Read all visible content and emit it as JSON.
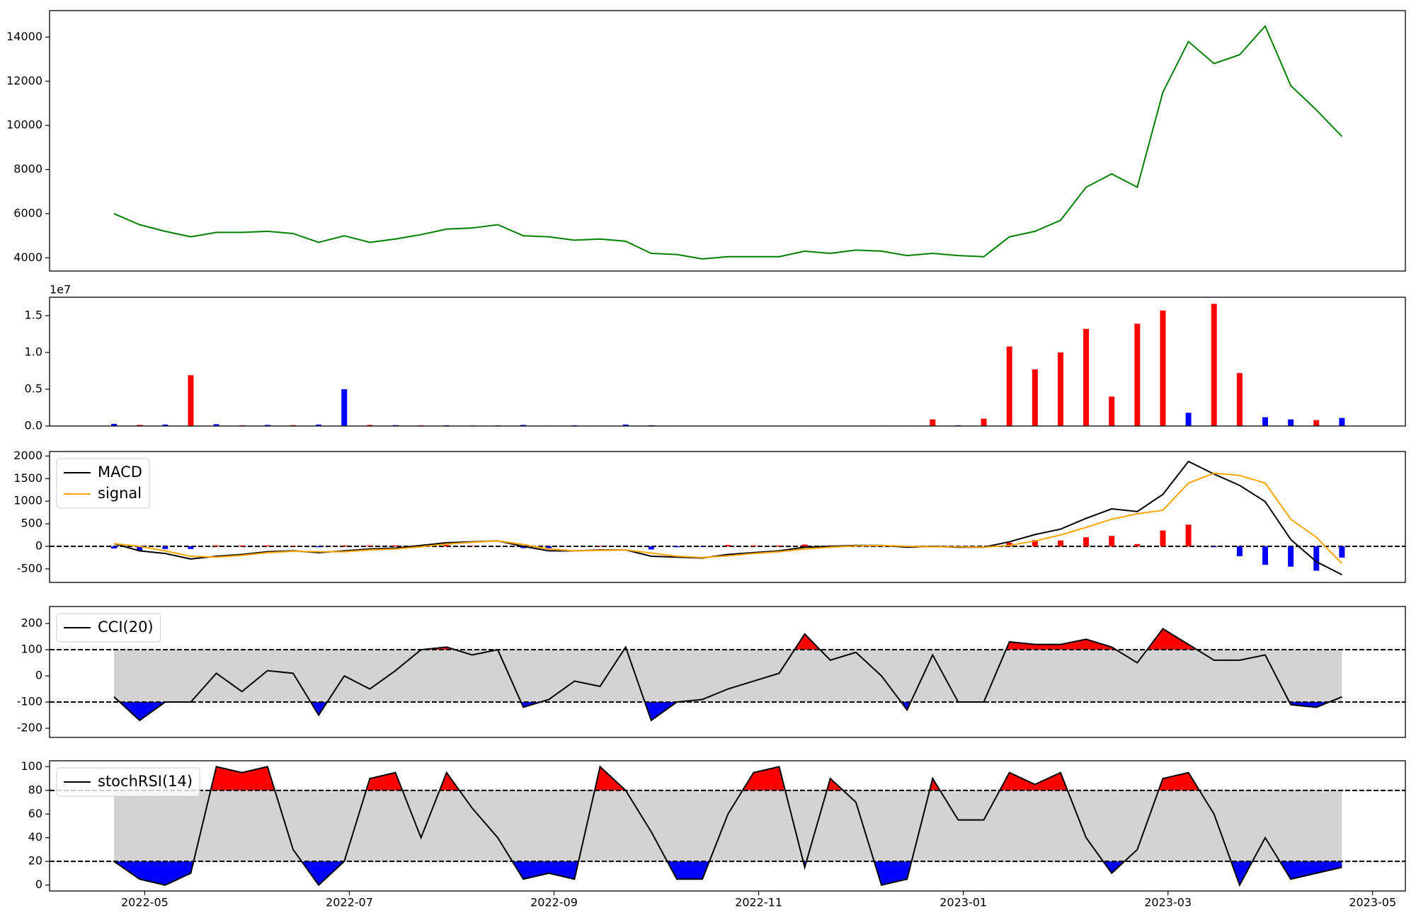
{
  "chart_data": [
    {
      "type": "line",
      "x": [
        4.7,
        4.95,
        5.2,
        5.45,
        5.7,
        5.95,
        6.2,
        6.45,
        6.7,
        6.95,
        7.2,
        7.45,
        7.7,
        7.95,
        8.2,
        8.45,
        8.7,
        8.95,
        9.2,
        9.45,
        9.7,
        9.95,
        10.2,
        10.45,
        10.7,
        10.95,
        11.2,
        11.45,
        11.7,
        11.95,
        12.2,
        12.45,
        12.7,
        12.95,
        13.2,
        13.45,
        13.7,
        13.95,
        14.2,
        14.45,
        14.7,
        14.95,
        15.2,
        15.45,
        15.7,
        15.95,
        16.2,
        16.45,
        16.7
      ],
      "xlim": [
        4.07,
        17.32
      ],
      "ylim": [
        3400,
        15200
      ],
      "yticks": [
        4000,
        6000,
        8000,
        10000,
        12000,
        14000
      ],
      "series": [
        {
          "color": "green",
          "values": [
            6000,
            5500,
            5200,
            4950,
            5150,
            5150,
            5200,
            5100,
            4700,
            5000,
            4700,
            4850,
            5050,
            5300,
            5350,
            5500,
            5000,
            4950,
            4800,
            4850,
            4750,
            4200,
            4150,
            3950,
            4050,
            4050,
            4050,
            4300,
            4200,
            4350,
            4300,
            4100,
            4200,
            4100,
            4050,
            4950,
            5200,
            5700,
            7200,
            7800,
            7200,
            11500,
            13800,
            12800,
            13200,
            14500,
            11800,
            10700,
            9500
          ]
        }
      ]
    },
    {
      "type": "bar",
      "x": [
        4.7,
        4.95,
        5.2,
        5.45,
        5.7,
        5.95,
        6.2,
        6.45,
        6.7,
        6.95,
        7.2,
        7.45,
        7.7,
        7.95,
        8.2,
        8.45,
        8.7,
        8.95,
        9.2,
        9.45,
        9.7,
        9.95,
        10.2,
        10.45,
        10.7,
        10.95,
        11.2,
        11.45,
        11.7,
        11.95,
        12.2,
        12.45,
        12.7,
        12.95,
        13.2,
        13.45,
        13.7,
        13.95,
        14.2,
        14.45,
        14.7,
        14.95,
        15.2,
        15.45,
        15.7,
        15.95,
        16.2,
        16.45,
        16.7
      ],
      "xlim": [
        4.07,
        17.32
      ],
      "ylim": [
        0,
        17500000
      ],
      "offset_label": "1e7",
      "yticks": [
        {
          "value": 0,
          "label": "0.0"
        },
        {
          "value": 5000000,
          "label": "0.5"
        },
        {
          "value": 10000000,
          "label": "1.0"
        },
        {
          "value": 15000000,
          "label": "1.5"
        }
      ],
      "series": [
        {
          "color": "red",
          "values": [
            null,
            150000,
            null,
            6900000,
            null,
            100000,
            null,
            120000,
            null,
            null,
            150000,
            null,
            100000,
            null,
            80000,
            null,
            null,
            60000,
            null,
            50000,
            null,
            null,
            null,
            40000,
            null,
            null,
            null,
            50000,
            null,
            null,
            null,
            null,
            900000,
            null,
            1000000,
            10800000,
            7700000,
            10000000,
            13200000,
            4000000,
            13900000,
            15700000,
            null,
            16600000,
            7200000,
            null,
            null,
            800000,
            null
          ]
        },
        {
          "color": "blue",
          "values": [
            300000,
            null,
            200000,
            null,
            250000,
            null,
            150000,
            null,
            200000,
            5000000,
            null,
            120000,
            null,
            100000,
            null,
            80000,
            150000,
            null,
            100000,
            null,
            200000,
            100000,
            50000,
            null,
            40000,
            30000,
            40000,
            null,
            30000,
            40000,
            60000,
            50000,
            null,
            100000,
            null,
            null,
            null,
            null,
            null,
            null,
            null,
            null,
            1800000,
            null,
            null,
            1200000,
            900000,
            null,
            1100000
          ]
        }
      ]
    },
    {
      "type": "line",
      "x": [
        4.7,
        4.95,
        5.2,
        5.45,
        5.7,
        5.95,
        6.2,
        6.45,
        6.7,
        6.95,
        7.2,
        7.45,
        7.7,
        7.95,
        8.2,
        8.45,
        8.7,
        8.95,
        9.2,
        9.45,
        9.7,
        9.95,
        10.2,
        10.45,
        10.7,
        10.95,
        11.2,
        11.45,
        11.7,
        11.95,
        12.2,
        12.45,
        12.7,
        12.95,
        13.2,
        13.45,
        13.7,
        13.95,
        14.2,
        14.45,
        14.7,
        14.95,
        15.2,
        15.45,
        15.7,
        15.95,
        16.2,
        16.45,
        16.7
      ],
      "xlim": [
        4.07,
        17.32
      ],
      "ylim": [
        -800,
        2100
      ],
      "yticks": [
        -500,
        0,
        500,
        1000,
        1500,
        2000
      ],
      "hline": 0,
      "legend": "upper left",
      "histogram": {
        "up_color": "red",
        "down_color": "blue",
        "values": [
          -50,
          -100,
          -60,
          -60,
          20,
          20,
          20,
          10,
          -20,
          20,
          20,
          20,
          30,
          30,
          10,
          0,
          -40,
          -40,
          0,
          10,
          0,
          -70,
          -20,
          -10,
          30,
          20,
          20,
          40,
          20,
          10,
          0,
          -20,
          10,
          -10,
          0,
          80,
          140,
          130,
          200,
          230,
          50,
          350,
          480,
          -20,
          -220,
          -410,
          -450,
          -540,
          -250
        ]
      },
      "series": [
        {
          "name": "MACD",
          "color": "black",
          "values": [
            60,
            -100,
            -160,
            -280,
            -220,
            -180,
            -120,
            -100,
            -140,
            -100,
            -60,
            -40,
            20,
            80,
            100,
            120,
            0,
            -100,
            -100,
            -80,
            -80,
            -220,
            -240,
            -260,
            -180,
            -140,
            -100,
            -20,
            0,
            20,
            20,
            -20,
            0,
            -20,
            -20,
            100,
            260,
            380,
            620,
            830,
            770,
            1150,
            1880,
            1600,
            1350,
            990,
            150,
            -340,
            -630
          ]
        },
        {
          "name": "signal",
          "color": "orange",
          "values": [
            60,
            0,
            -100,
            -220,
            -240,
            -200,
            -140,
            -110,
            -120,
            -120,
            -80,
            -60,
            -10,
            50,
            90,
            120,
            40,
            -60,
            -100,
            -90,
            -80,
            -150,
            -220,
            -250,
            -210,
            -160,
            -120,
            -60,
            -20,
            10,
            20,
            0,
            -10,
            -10,
            -20,
            20,
            120,
            250,
            420,
            600,
            720,
            800,
            1400,
            1620,
            1570,
            1400,
            600,
            200,
            -380
          ]
        }
      ]
    },
    {
      "type": "line",
      "x": [
        4.7,
        4.95,
        5.2,
        5.45,
        5.7,
        5.95,
        6.2,
        6.45,
        6.7,
        6.95,
        7.2,
        7.45,
        7.7,
        7.95,
        8.2,
        8.45,
        8.7,
        8.95,
        9.2,
        9.45,
        9.7,
        9.95,
        10.2,
        10.45,
        10.7,
        10.95,
        11.2,
        11.45,
        11.7,
        11.95,
        12.2,
        12.45,
        12.7,
        12.95,
        13.2,
        13.45,
        13.7,
        13.95,
        14.2,
        14.45,
        14.7,
        14.95,
        15.2,
        15.45,
        15.7,
        15.95,
        16.2,
        16.45,
        16.7
      ],
      "xlim": [
        4.07,
        17.32
      ],
      "ylim": [
        -235,
        265
      ],
      "yticks": [
        -200,
        -100,
        0,
        100,
        200
      ],
      "band": [
        -100,
        100
      ],
      "band_colors": {
        "inside": "lightgray",
        "above": "red",
        "below": "blue"
      },
      "legend": "upper left",
      "series": [
        {
          "name": "CCI(20)",
          "color": "black",
          "values": [
            -80,
            -170,
            -100,
            -100,
            10,
            -60,
            20,
            10,
            -150,
            0,
            -50,
            20,
            100,
            110,
            80,
            100,
            -120,
            -90,
            -20,
            -40,
            110,
            -170,
            -100,
            -90,
            -50,
            -20,
            10,
            160,
            60,
            90,
            0,
            -130,
            80,
            -100,
            -100,
            130,
            120,
            120,
            140,
            110,
            50,
            180,
            120,
            60,
            60,
            80,
            -110,
            -120,
            -80
          ]
        }
      ]
    },
    {
      "type": "line",
      "x": [
        4.7,
        4.95,
        5.2,
        5.45,
        5.7,
        5.95,
        6.2,
        6.45,
        6.7,
        6.95,
        7.2,
        7.45,
        7.7,
        7.95,
        8.2,
        8.45,
        8.7,
        8.95,
        9.2,
        9.45,
        9.7,
        9.95,
        10.2,
        10.45,
        10.7,
        10.95,
        11.2,
        11.45,
        11.7,
        11.95,
        12.2,
        12.45,
        12.7,
        12.95,
        13.2,
        13.45,
        13.7,
        13.95,
        14.2,
        14.45,
        14.7,
        14.95,
        15.2,
        15.45,
        15.7,
        15.95,
        16.2,
        16.45,
        16.7
      ],
      "xlim": [
        4.07,
        17.32
      ],
      "ylim": [
        -5,
        105
      ],
      "yticks": [
        0,
        20,
        40,
        60,
        80,
        100
      ],
      "xticks": [
        {
          "value": 5,
          "label": "2022-05"
        },
        {
          "value": 7,
          "label": "2022-07"
        },
        {
          "value": 9,
          "label": "2022-09"
        },
        {
          "value": 11,
          "label": "2022-11"
        },
        {
          "value": 13,
          "label": "2023-01"
        },
        {
          "value": 15,
          "label": "2023-03"
        },
        {
          "value": 17,
          "label": "2023-05"
        }
      ],
      "band": [
        20,
        80
      ],
      "band_colors": {
        "inside": "lightgray",
        "above": "red",
        "below": "blue"
      },
      "legend": "upper left",
      "series": [
        {
          "name": "stochRSI(14)",
          "color": "black",
          "values": [
            20,
            5,
            0,
            10,
            100,
            95,
            100,
            30,
            0,
            20,
            90,
            95,
            40,
            95,
            65,
            40,
            5,
            10,
            5,
            100,
            80,
            45,
            5,
            5,
            60,
            95,
            100,
            15,
            90,
            70,
            0,
            5,
            90,
            55,
            55,
            95,
            85,
            95,
            40,
            10,
            30,
            90,
            95,
            60,
            0,
            40,
            5,
            10,
            15
          ]
        }
      ]
    }
  ]
}
